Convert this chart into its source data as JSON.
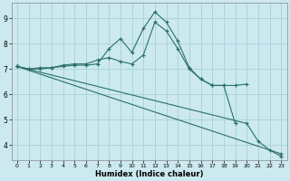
{
  "xlabel": "Humidex (Indice chaleur)",
  "bg_color": "#cce9f0",
  "grid_color": "#aad4dc",
  "line_color": "#2a7068",
  "xlim": [
    -0.5,
    23.5
  ],
  "ylim": [
    3.4,
    9.6
  ],
  "xticks": [
    0,
    1,
    2,
    3,
    4,
    5,
    6,
    7,
    8,
    9,
    10,
    11,
    12,
    13,
    14,
    15,
    16,
    17,
    18,
    19,
    20,
    21,
    22,
    23
  ],
  "yticks": [
    4,
    5,
    6,
    7,
    8,
    9
  ],
  "lines": [
    {
      "x": [
        0,
        1,
        2,
        3,
        4,
        5,
        6,
        7,
        8,
        9,
        10,
        11,
        12,
        13,
        14,
        15,
        16,
        17,
        18,
        19,
        20
      ],
      "y": [
        7.1,
        7.0,
        7.0,
        7.05,
        7.1,
        7.15,
        7.15,
        7.2,
        7.8,
        8.2,
        7.65,
        8.6,
        9.25,
        8.85,
        8.1,
        7.05,
        6.6,
        6.35,
        6.35,
        6.35,
        6.4
      ]
    },
    {
      "x": [
        0,
        1,
        2,
        3,
        4,
        5,
        6,
        7,
        8,
        9,
        10,
        11,
        12,
        13,
        14,
        15,
        16,
        17,
        18,
        19
      ],
      "y": [
        7.1,
        7.0,
        7.05,
        7.05,
        7.15,
        7.2,
        7.2,
        7.35,
        7.45,
        7.3,
        7.2,
        7.55,
        8.85,
        8.5,
        7.8,
        7.0,
        6.6,
        6.35,
        6.35,
        4.85
      ]
    },
    {
      "x": [
        0,
        23
      ],
      "y": [
        7.1,
        3.65
      ]
    },
    {
      "x": [
        0,
        20,
        21,
        22,
        23
      ],
      "y": [
        7.1,
        4.85,
        4.15,
        3.8,
        3.55
      ]
    }
  ]
}
